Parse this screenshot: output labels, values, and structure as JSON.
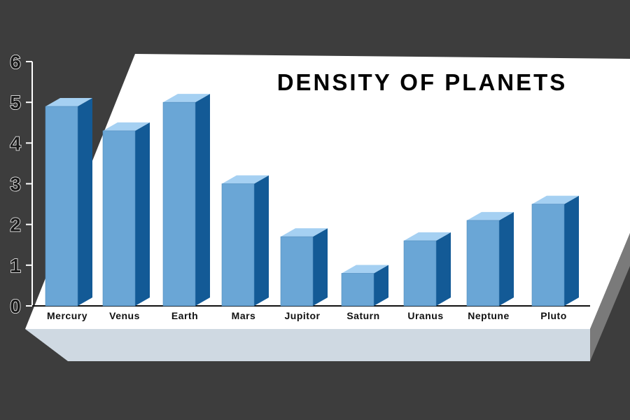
{
  "colors": {
    "background": "#3d3d3d",
    "platform_top": "#ffffff",
    "platform_front": "#cfd9e2",
    "platform_side": "#7a7a7a",
    "bar_front": "#6aa6d6",
    "bar_side": "#135a96",
    "bar_top": "#a5d0f2"
  },
  "chart_data": {
    "type": "bar",
    "title": "DENSITY OF PLANETS",
    "xlabel": "",
    "ylabel": "",
    "categories": [
      "Mercury",
      "Venus",
      "Earth",
      "Mars",
      "Jupitor",
      "Saturn",
      "Uranus",
      "Neptune",
      "Pluto"
    ],
    "values": [
      4.9,
      4.3,
      5.0,
      3.0,
      1.7,
      0.8,
      1.6,
      2.1,
      2.5
    ],
    "ylim": [
      0,
      6
    ],
    "yticks": [
      "0",
      "1",
      "2",
      "3",
      "4",
      "5",
      "6"
    ],
    "grid": false,
    "style": "3d-bars"
  }
}
